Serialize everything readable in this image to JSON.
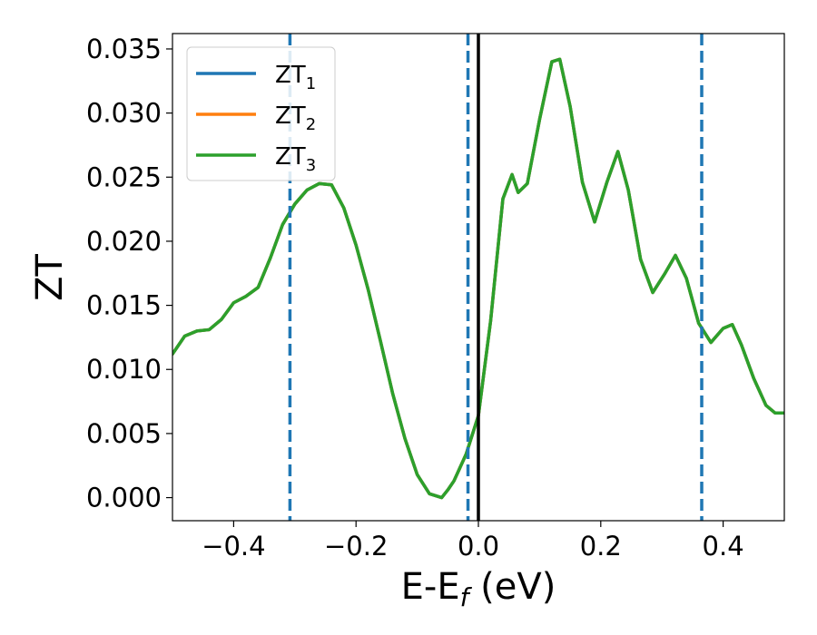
{
  "chart_data": {
    "type": "line",
    "title": "",
    "xlabel": "E-E",
    "xlabel_sub": "f",
    "xlabel_unit": " (eV)",
    "ylabel": "ZT",
    "xlim": [
      -0.5,
      0.5
    ],
    "ylim": [
      -0.0018,
      0.0362
    ],
    "xticks": [
      -0.4,
      -0.2,
      0.0,
      0.2,
      0.4
    ],
    "xtick_labels": [
      "−0.4",
      "−0.2",
      "0.0",
      "0.2",
      "0.4"
    ],
    "yticks": [
      0.0,
      0.005,
      0.01,
      0.015,
      0.02,
      0.025,
      0.03,
      0.035
    ],
    "ytick_labels": [
      "0.000",
      "0.005",
      "0.010",
      "0.015",
      "0.020",
      "0.025",
      "0.030",
      "0.035"
    ],
    "grid": false,
    "legend_position": "upper-left",
    "series": [
      {
        "name": "ZT",
        "name_sub": "1",
        "color": "#1f77b4",
        "x": [
          -0.5,
          -0.48,
          -0.46,
          -0.44,
          -0.42,
          -0.4,
          -0.38,
          -0.36,
          -0.34,
          -0.32,
          -0.3,
          -0.28,
          -0.26,
          -0.24,
          -0.22,
          -0.2,
          -0.18,
          -0.16,
          -0.14,
          -0.12,
          -0.1,
          -0.08,
          -0.06,
          -0.05,
          -0.04,
          -0.02,
          0.0,
          0.02,
          0.04,
          0.055,
          0.065,
          0.08,
          0.1,
          0.12,
          0.133,
          0.15,
          0.17,
          0.19,
          0.21,
          0.228,
          0.245,
          0.265,
          0.285,
          0.305,
          0.322,
          0.34,
          0.36,
          0.38,
          0.4,
          0.415,
          0.43,
          0.45,
          0.47,
          0.485,
          0.5
        ],
        "y": [
          0.0112,
          0.0126,
          0.013,
          0.0131,
          0.0139,
          0.0152,
          0.0157,
          0.0164,
          0.0187,
          0.0213,
          0.0229,
          0.024,
          0.0245,
          0.0244,
          0.0226,
          0.0197,
          0.0162,
          0.0122,
          0.0081,
          0.0046,
          0.0018,
          0.0003,
          0.0,
          0.0006,
          0.0013,
          0.0034,
          0.0064,
          0.0138,
          0.0233,
          0.0252,
          0.0238,
          0.0245,
          0.0295,
          0.034,
          0.0342,
          0.0305,
          0.0246,
          0.0215,
          0.0246,
          0.027,
          0.024,
          0.0186,
          0.016,
          0.0175,
          0.0189,
          0.0171,
          0.0136,
          0.0121,
          0.0132,
          0.0135,
          0.0119,
          0.0093,
          0.0072,
          0.0066,
          0.0066
        ]
      },
      {
        "name": "ZT",
        "name_sub": "2",
        "color": "#ff7f0e",
        "x": [
          -0.5,
          -0.48,
          -0.46,
          -0.44,
          -0.42,
          -0.4,
          -0.38,
          -0.36,
          -0.34,
          -0.32,
          -0.3,
          -0.28,
          -0.26,
          -0.24,
          -0.22,
          -0.2,
          -0.18,
          -0.16,
          -0.14,
          -0.12,
          -0.1,
          -0.08,
          -0.06,
          -0.05,
          -0.04,
          -0.02,
          0.0,
          0.02,
          0.04,
          0.055,
          0.065,
          0.08,
          0.1,
          0.12,
          0.133,
          0.15,
          0.17,
          0.19,
          0.21,
          0.228,
          0.245,
          0.265,
          0.285,
          0.305,
          0.322,
          0.34,
          0.36,
          0.38,
          0.4,
          0.415,
          0.43,
          0.45,
          0.47,
          0.485,
          0.5
        ],
        "y": [
          0.0112,
          0.0126,
          0.013,
          0.0131,
          0.0139,
          0.0152,
          0.0157,
          0.0164,
          0.0187,
          0.0213,
          0.0229,
          0.024,
          0.0245,
          0.0244,
          0.0226,
          0.0197,
          0.0162,
          0.0122,
          0.0081,
          0.0046,
          0.0018,
          0.0003,
          0.0,
          0.0006,
          0.0013,
          0.0034,
          0.0064,
          0.0138,
          0.0233,
          0.0252,
          0.0238,
          0.0245,
          0.0295,
          0.034,
          0.0342,
          0.0305,
          0.0246,
          0.0215,
          0.0246,
          0.027,
          0.024,
          0.0186,
          0.016,
          0.0175,
          0.0189,
          0.0171,
          0.0136,
          0.0121,
          0.0132,
          0.0135,
          0.0119,
          0.0093,
          0.0072,
          0.0066,
          0.0066
        ]
      },
      {
        "name": "ZT",
        "name_sub": "3",
        "color": "#2ca02c",
        "x": [
          -0.5,
          -0.48,
          -0.46,
          -0.44,
          -0.42,
          -0.4,
          -0.38,
          -0.36,
          -0.34,
          -0.32,
          -0.3,
          -0.28,
          -0.26,
          -0.24,
          -0.22,
          -0.2,
          -0.18,
          -0.16,
          -0.14,
          -0.12,
          -0.1,
          -0.08,
          -0.06,
          -0.05,
          -0.04,
          -0.02,
          0.0,
          0.02,
          0.04,
          0.055,
          0.065,
          0.08,
          0.1,
          0.12,
          0.133,
          0.15,
          0.17,
          0.19,
          0.21,
          0.228,
          0.245,
          0.265,
          0.285,
          0.305,
          0.322,
          0.34,
          0.36,
          0.38,
          0.4,
          0.415,
          0.43,
          0.45,
          0.47,
          0.485,
          0.5
        ],
        "y": [
          0.0112,
          0.0126,
          0.013,
          0.0131,
          0.0139,
          0.0152,
          0.0157,
          0.0164,
          0.0187,
          0.0213,
          0.0229,
          0.024,
          0.0245,
          0.0244,
          0.0226,
          0.0197,
          0.0162,
          0.0122,
          0.0081,
          0.0046,
          0.0018,
          0.0003,
          0.0,
          0.0006,
          0.0013,
          0.0034,
          0.0064,
          0.0138,
          0.0233,
          0.0252,
          0.0238,
          0.0245,
          0.0295,
          0.034,
          0.0342,
          0.0305,
          0.0246,
          0.0215,
          0.0246,
          0.027,
          0.024,
          0.0186,
          0.016,
          0.0175,
          0.0189,
          0.0171,
          0.0136,
          0.0121,
          0.0132,
          0.0135,
          0.0119,
          0.0093,
          0.0072,
          0.0066,
          0.0066
        ]
      }
    ],
    "vlines": [
      {
        "x": -0.308,
        "style": "dashed",
        "color": "#1f77b4"
      },
      {
        "x": -0.017,
        "style": "dashed",
        "color": "#1f77b4"
      },
      {
        "x": 0.0,
        "style": "solid",
        "color": "#000000"
      },
      {
        "x": 0.365,
        "style": "dashed",
        "color": "#1f77b4"
      }
    ]
  }
}
